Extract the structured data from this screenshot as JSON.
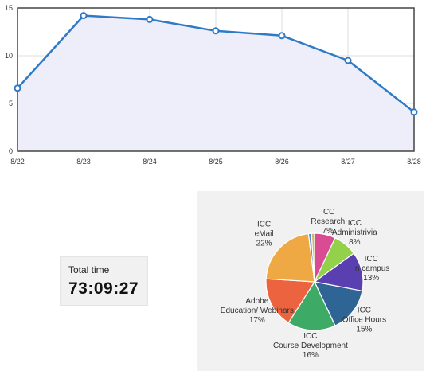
{
  "chart_data": [
    {
      "type": "area",
      "categories": [
        "8/22",
        "8/23",
        "8/24",
        "8/25",
        "8/26",
        "8/27",
        "8/28"
      ],
      "values": [
        6.6,
        14.2,
        13.8,
        12.6,
        12.1,
        9.5,
        4.1
      ],
      "ylim": [
        0,
        15
      ],
      "yticks": [
        0,
        5,
        10,
        15
      ],
      "grid": true,
      "colors": {
        "line": "#2f7ac6",
        "fill": "#eeeefa",
        "grid": "#dcdcdc",
        "frame": "#444444",
        "marker_fill": "#ffffff"
      }
    },
    {
      "type": "pie",
      "slices": [
        {
          "label": "ICC Research",
          "value": 7,
          "pct_label": "7%",
          "color": "#d94c94"
        },
        {
          "label": "ICC Administrivia",
          "value": 8,
          "pct_label": "8%",
          "color": "#93d14a"
        },
        {
          "label": "ICC In campus",
          "value": 13,
          "pct_label": "13%",
          "color": "#5a3fb0"
        },
        {
          "label": "ICC Office Hours",
          "value": 15,
          "pct_label": "15%",
          "color": "#2f6595"
        },
        {
          "label": "ICC Course Development",
          "value": 16,
          "pct_label": "16%",
          "color": "#3daa66"
        },
        {
          "label": "Adobe Education/ Webinars",
          "value": 17,
          "pct_label": "17%",
          "color": "#ec6340"
        },
        {
          "label": "ICC eMail",
          "value": 22,
          "pct_label": "22%",
          "color": "#efa944"
        },
        {
          "label": "",
          "value": 1,
          "pct_label": "",
          "color": "#4b8fd6"
        },
        {
          "label": "",
          "value": 1,
          "pct_label": "",
          "color": "#d8b070"
        }
      ],
      "label_lines": [
        [
          "ICC",
          "Research",
          "7%"
        ],
        [
          "ICC",
          "Administrivia",
          "8%"
        ],
        [
          "ICC",
          "In campus",
          "13%"
        ],
        [
          "ICC",
          "Office Hours",
          "15%"
        ],
        [
          "ICC",
          "Course Development",
          "16%"
        ],
        [
          "Adobe",
          "Education/ Webinars",
          "17%"
        ],
        [
          "ICC",
          "eMail",
          "22%"
        ]
      ]
    }
  ],
  "total_time": {
    "label": "Total time",
    "value": "73:09:27"
  }
}
